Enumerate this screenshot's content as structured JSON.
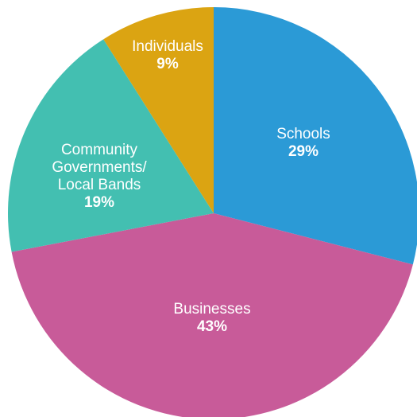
{
  "chart_data": {
    "type": "pie",
    "title": "",
    "start_angle_deg": 0,
    "direction": "clockwise",
    "slices": [
      {
        "label_lines": [
          "Schools"
        ],
        "pct_label": "29%",
        "value": 29,
        "color": "#2b9ad6"
      },
      {
        "label_lines": [
          "Businesses"
        ],
        "pct_label": "43%",
        "value": 43,
        "color": "#c85b99"
      },
      {
        "label_lines": [
          "Community",
          "Governments/",
          "Local Bands"
        ],
        "pct_label": "19%",
        "value": 19,
        "color": "#43bfb1"
      },
      {
        "label_lines": [
          "Individuals"
        ],
        "pct_label": "9%",
        "value": 9,
        "color": "#dba412"
      }
    ]
  }
}
